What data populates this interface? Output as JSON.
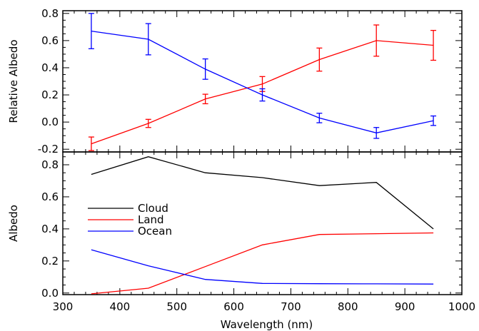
{
  "chart_data": [
    {
      "type": "line",
      "panel": "top",
      "xlabel": "",
      "ylabel": "Relative Albedo",
      "xlim": [
        300,
        1000
      ],
      "ylim": [
        -0.22,
        0.82
      ],
      "y_ticks": [
        "-0.2",
        "0.0",
        "0.2",
        "0.4",
        "0.6",
        "0.8"
      ],
      "x": [
        350,
        450,
        550,
        650,
        750,
        850,
        950
      ],
      "grid": false,
      "series": [
        {
          "color": "#ff0000",
          "values": [
            -0.16,
            -0.01,
            0.17,
            0.28,
            0.46,
            0.6,
            0.565
          ],
          "error": [
            0.05,
            0.03,
            0.035,
            0.055,
            0.085,
            0.115,
            0.11
          ]
        },
        {
          "color": "#0000ff",
          "values": [
            0.67,
            0.61,
            0.39,
            0.2,
            0.03,
            -0.08,
            0.01
          ],
          "error": [
            0.13,
            0.115,
            0.075,
            0.045,
            0.035,
            0.04,
            0.035
          ]
        }
      ]
    },
    {
      "type": "line",
      "panel": "bottom",
      "xlabel": "Wavelength (nm)",
      "ylabel": "Albedo",
      "xlim": [
        300,
        1000
      ],
      "ylim": [
        -0.01,
        0.88
      ],
      "x_ticks": [
        "300",
        "400",
        "500",
        "600",
        "700",
        "800",
        "900",
        "1000"
      ],
      "y_ticks": [
        "0.0",
        "0.2",
        "0.4",
        "0.6",
        "0.8"
      ],
      "x": [
        350,
        450,
        550,
        650,
        750,
        850,
        950
      ],
      "grid": false,
      "legend": "inside-left",
      "series": [
        {
          "name": "Cloud",
          "color": "#000000",
          "values": [
            0.74,
            0.85,
            0.75,
            0.72,
            0.67,
            0.69,
            0.4
          ]
        },
        {
          "name": "Land",
          "color": "#ff0000",
          "values": [
            -0.005,
            0.03,
            0.165,
            0.3,
            0.365,
            0.37,
            0.375
          ]
        },
        {
          "name": "Ocean",
          "color": "#0000ff",
          "values": [
            0.27,
            0.17,
            0.085,
            0.06,
            0.058,
            0.057,
            0.056
          ]
        }
      ]
    }
  ]
}
